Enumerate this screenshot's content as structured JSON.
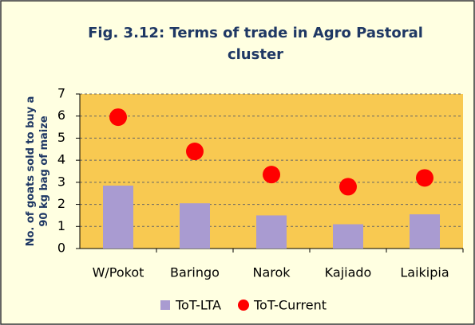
{
  "chart_data": {
    "type": "bar",
    "title": "Fig. 3.12: Terms of trade in Agro Pastoral cluster",
    "ylabel": "No. of goats sold to buy a 90 kg bag of maize",
    "categories": [
      "W/Pokot",
      "Baringo",
      "Narok",
      "Kajiado",
      "Laikipia"
    ],
    "series": [
      {
        "name": "ToT-LTA",
        "type": "bar",
        "color": "#a99bd1",
        "values": [
          2.85,
          2.05,
          1.5,
          1.1,
          1.55
        ]
      },
      {
        "name": "ToT-Current",
        "type": "scatter",
        "color": "#ff0000",
        "values": [
          5.95,
          4.4,
          3.35,
          2.8,
          3.2
        ]
      }
    ],
    "ylim": [
      0,
      7
    ],
    "yticks": [
      0,
      1,
      2,
      3,
      4,
      5,
      6,
      7
    ],
    "grid": true
  }
}
